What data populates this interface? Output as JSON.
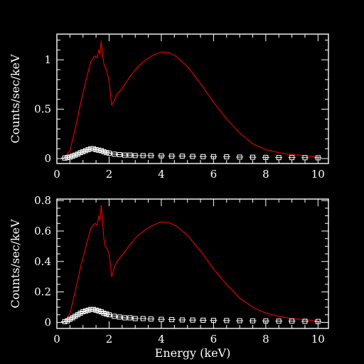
{
  "chart_data": [
    {
      "type": "line",
      "xlabel": "",
      "ylabel": "Counts/sec/keV",
      "xlim": [
        0,
        10.4
      ],
      "ylim": [
        -0.05,
        1.26
      ],
      "xticks": [
        "0",
        "2",
        "4",
        "6",
        "8",
        "10"
      ],
      "yticks": [
        "0",
        "0.5",
        "1"
      ],
      "series": [
        {
          "color": "#e00000",
          "style": "line",
          "x": [
            0.3,
            0.5,
            0.7,
            0.9,
            1.1,
            1.3,
            1.45,
            1.55,
            1.6,
            1.65,
            1.7,
            1.75,
            1.8,
            1.85,
            1.9,
            2.0,
            2.1,
            2.2,
            2.3,
            2.5,
            2.8,
            3.1,
            3.4,
            3.7,
            4.0,
            4.3,
            4.6,
            5.0,
            5.5,
            6.0,
            6.5,
            7.0,
            7.5,
            8.0,
            8.5,
            9.0,
            9.5,
            10.0
          ],
          "y": [
            0.01,
            0.08,
            0.3,
            0.55,
            0.78,
            0.98,
            1.04,
            1.02,
            1.1,
            1.06,
            1.19,
            1.05,
            0.96,
            0.92,
            0.9,
            0.78,
            0.54,
            0.59,
            0.65,
            0.71,
            0.83,
            0.93,
            1.0,
            1.05,
            1.08,
            1.07,
            1.03,
            0.93,
            0.76,
            0.57,
            0.4,
            0.26,
            0.15,
            0.09,
            0.06,
            0.04,
            0.03,
            0.015
          ]
        },
        {
          "color": "#ffffff",
          "style": "markers",
          "x": [
            0.3,
            0.4,
            0.5,
            0.6,
            0.7,
            0.8,
            0.9,
            1.0,
            1.1,
            1.2,
            1.3,
            1.4,
            1.5,
            1.6,
            1.7,
            1.8,
            1.9,
            2.0,
            2.2,
            2.4,
            2.6,
            2.8,
            3.0,
            3.3,
            3.6,
            4.0,
            4.4,
            4.8,
            5.2,
            5.6,
            6.0,
            6.5,
            7.0,
            7.5,
            8.0,
            8.5,
            9.0,
            9.5,
            10.0
          ],
          "y": [
            0.005,
            0.01,
            0.015,
            0.025,
            0.035,
            0.045,
            0.06,
            0.07,
            0.08,
            0.09,
            0.1,
            0.1,
            0.09,
            0.085,
            0.08,
            0.07,
            0.06,
            0.055,
            0.045,
            0.04,
            0.035,
            0.035,
            0.03,
            0.03,
            0.03,
            0.028,
            0.025,
            0.025,
            0.022,
            0.02,
            0.02,
            0.018,
            0.015,
            0.014,
            0.012,
            0.01,
            0.01,
            0.009,
            0.008
          ]
        }
      ]
    },
    {
      "type": "line",
      "xlabel": "Energy (keV)",
      "ylabel": "Counts/sec/keV",
      "xlim": [
        0,
        10.4
      ],
      "ylim": [
        -0.04,
        0.81
      ],
      "xticks": [
        "0",
        "2",
        "4",
        "6",
        "8",
        "10"
      ],
      "yticks": [
        "0",
        "0.2",
        "0.4",
        "0.6",
        "0.8"
      ],
      "series": [
        {
          "color": "#e00000",
          "style": "line",
          "x": [
            0.3,
            0.5,
            0.7,
            0.9,
            1.1,
            1.3,
            1.45,
            1.55,
            1.6,
            1.65,
            1.7,
            1.75,
            1.8,
            1.85,
            1.9,
            2.0,
            2.1,
            2.2,
            2.3,
            2.5,
            2.8,
            3.1,
            3.4,
            3.7,
            4.0,
            4.3,
            4.6,
            5.0,
            5.5,
            6.0,
            6.5,
            7.0,
            7.5,
            8.0,
            8.5,
            9.0,
            9.5,
            10.0
          ],
          "y": [
            0.01,
            0.06,
            0.2,
            0.36,
            0.49,
            0.62,
            0.65,
            0.64,
            0.7,
            0.67,
            0.77,
            0.66,
            0.55,
            0.5,
            0.49,
            0.45,
            0.3,
            0.36,
            0.4,
            0.44,
            0.51,
            0.57,
            0.61,
            0.64,
            0.66,
            0.655,
            0.63,
            0.57,
            0.47,
            0.35,
            0.25,
            0.16,
            0.1,
            0.06,
            0.04,
            0.025,
            0.018,
            0.01
          ]
        },
        {
          "color": "#ffffff",
          "style": "markers",
          "x": [
            0.3,
            0.4,
            0.5,
            0.6,
            0.7,
            0.8,
            0.9,
            1.0,
            1.1,
            1.2,
            1.3,
            1.4,
            1.5,
            1.6,
            1.7,
            1.8,
            1.9,
            2.0,
            2.2,
            2.4,
            2.6,
            2.8,
            3.0,
            3.3,
            3.6,
            4.0,
            4.4,
            4.8,
            5.2,
            5.6,
            6.0,
            6.5,
            7.0,
            7.5,
            8.0,
            8.5,
            9.0,
            9.5,
            10.0
          ],
          "y": [
            0.005,
            0.01,
            0.02,
            0.03,
            0.04,
            0.05,
            0.06,
            0.07,
            0.075,
            0.08,
            0.085,
            0.085,
            0.08,
            0.075,
            0.07,
            0.06,
            0.055,
            0.05,
            0.04,
            0.035,
            0.03,
            0.03,
            0.025,
            0.025,
            0.022,
            0.02,
            0.018,
            0.016,
            0.015,
            0.014,
            0.013,
            0.012,
            0.011,
            0.01,
            0.009,
            0.008,
            0.008,
            0.007,
            0.006
          ]
        }
      ]
    }
  ]
}
